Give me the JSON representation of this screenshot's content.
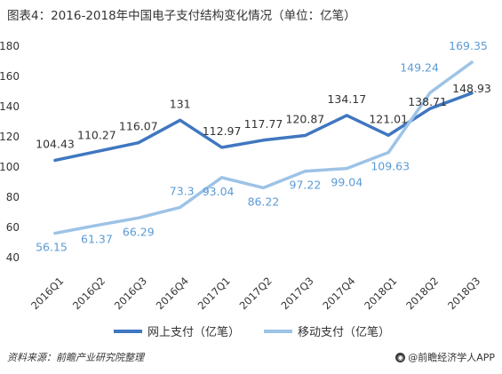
{
  "title": "图表4：2016-2018年中国电子支付结构变化情况（单位：亿笔）",
  "source": "资料来源：前瞻产业研究院整理",
  "brand": {
    "icon": "circle-logo-icon",
    "text": "@前瞻经济学人APP"
  },
  "colors": {
    "online": "#3f77c0",
    "mobile": "#9dc3e6",
    "label_online": "#333333",
    "label_mobile": "#5b9bd5"
  },
  "chart_data": {
    "type": "line",
    "title": "图表4：2016-2018年中国电子支付结构变化情况（单位：亿笔）",
    "categories": [
      "2016Q1",
      "2016Q2",
      "2016Q3",
      "2016Q4",
      "2017Q1",
      "2017Q2",
      "2017Q3",
      "2017Q4",
      "2018Q1",
      "2018Q2",
      "2018Q3"
    ],
    "series": [
      {
        "name": "网上支付（亿笔）",
        "values": [
          104.43,
          110.27,
          116.07,
          131,
          112.97,
          117.77,
          120.87,
          134.17,
          121.01,
          138.71,
          148.93
        ]
      },
      {
        "name": "移动支付（亿笔）",
        "values": [
          56.15,
          61.37,
          66.29,
          73.3,
          93.04,
          86.22,
          97.22,
          99.04,
          109.63,
          149.24,
          169.35
        ]
      }
    ],
    "labels": {
      "online": [
        "104.43",
        "110.27",
        "116.07",
        "131",
        "112.97",
        "117.77",
        "120.87",
        "134.17",
        "121.01",
        "138.71",
        "148.93"
      ],
      "mobile": [
        "56.15",
        "61.37",
        "66.29",
        "73.3",
        "93.04",
        "86.22",
        "97.22",
        "99.04",
        "109.63",
        "149.24",
        "169.35"
      ]
    },
    "yticks": [
      "40",
      "60",
      "80",
      "100",
      "120",
      "140",
      "160",
      "180"
    ],
    "ylim": [
      40,
      180
    ],
    "grid": false,
    "legend_position": "bottom-center"
  }
}
